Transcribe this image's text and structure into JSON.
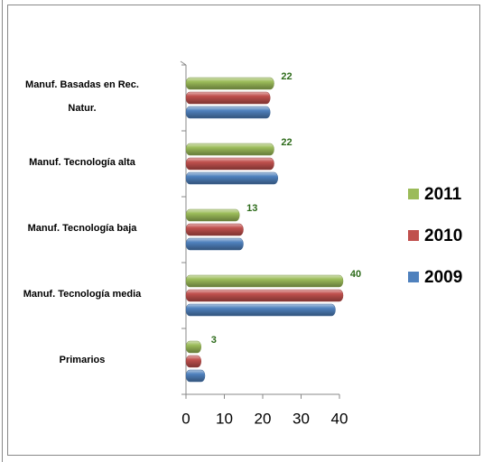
{
  "chart_data": {
    "type": "bar",
    "orientation": "horizontal",
    "categories": [
      "Manuf. Basadas en Rec. Natur.",
      "Manuf. Tecnología alta",
      "Manuf. Tecnología baja",
      "Manuf. Tecnología media",
      "Primarios"
    ],
    "series": [
      {
        "name": "2011",
        "color": "#9bbb59",
        "values": [
          22,
          22,
          13,
          40,
          3
        ]
      },
      {
        "name": "2010",
        "color": "#c0504d",
        "values": [
          21,
          22,
          14,
          40,
          3
        ]
      },
      {
        "name": "2009",
        "color": "#4f81bd",
        "values": [
          21,
          23,
          14,
          38,
          4
        ]
      }
    ],
    "data_labels_series": 0,
    "xlim": [
      0,
      40
    ],
    "xticks": [
      0,
      10,
      20,
      30,
      40
    ]
  }
}
